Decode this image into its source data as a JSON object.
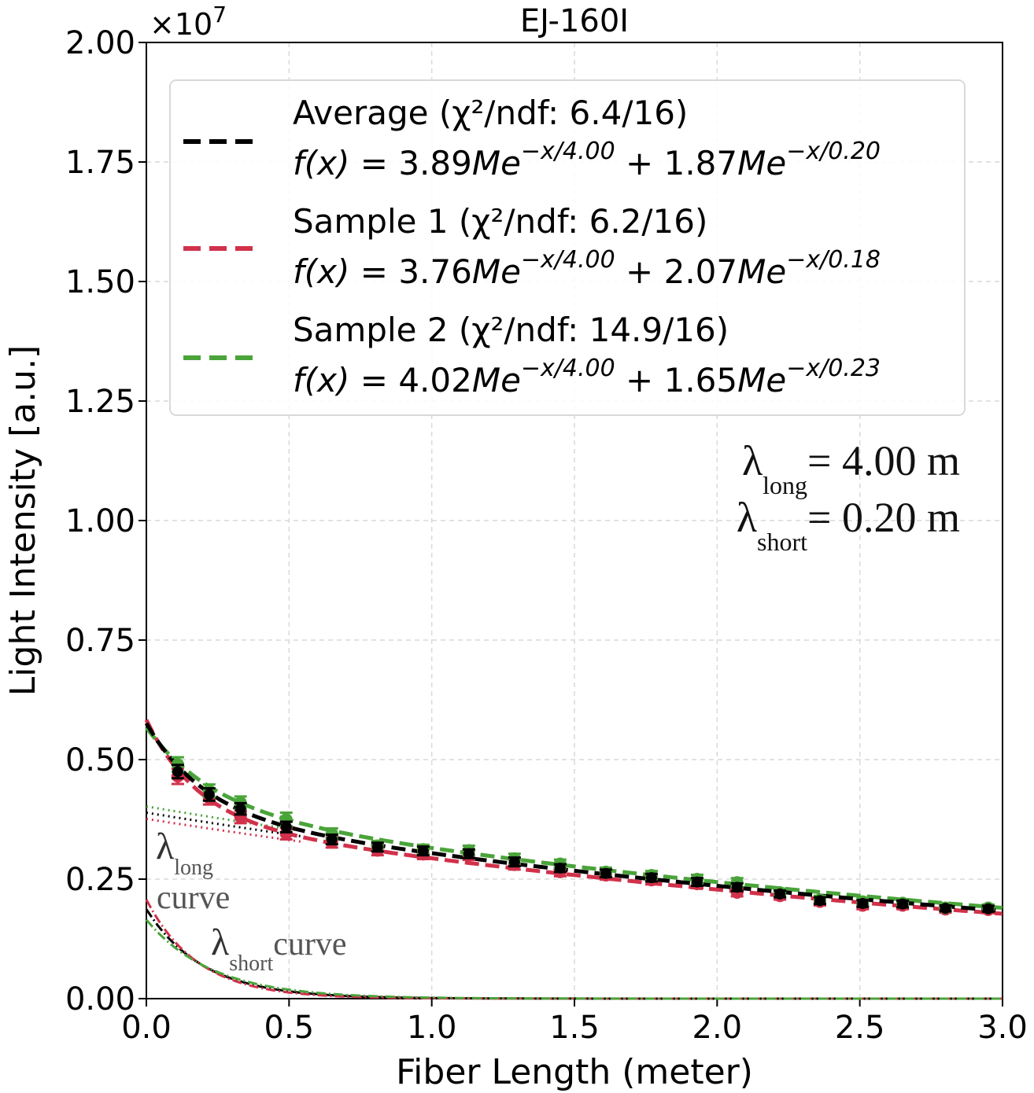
{
  "chart_data": {
    "type": "line",
    "title": "EJ-160I",
    "xlabel": "Fiber Length (meter)",
    "ylabel": "Light Intensity [a.u.]",
    "y_offset_label": "×10",
    "y_offset_exponent": "7",
    "xlim": [
      0.0,
      3.0
    ],
    "ylim": [
      0.0,
      2.0
    ],
    "y_scale": 10000000,
    "grid": true,
    "x_ticks": [
      0.0,
      0.5,
      1.0,
      1.5,
      2.0,
      2.5,
      3.0
    ],
    "x_tick_labels": [
      "0.0",
      "0.5",
      "1.0",
      "1.5",
      "2.0",
      "2.5",
      "3.0"
    ],
    "y_ticks": [
      0.0,
      0.25,
      0.5,
      0.75,
      1.0,
      1.25,
      1.5,
      1.75,
      2.0
    ],
    "y_tick_labels": [
      "0.00",
      "0.25",
      "0.50",
      "0.75",
      "1.00",
      "1.25",
      "1.50",
      "1.75",
      "2.00"
    ],
    "x": [
      0.11,
      0.22,
      0.33,
      0.49,
      0.65,
      0.81,
      0.97,
      1.13,
      1.29,
      1.45,
      1.61,
      1.77,
      1.93,
      2.07,
      2.22,
      2.36,
      2.51,
      2.65,
      2.8,
      2.95
    ],
    "series": [
      {
        "name": "Average",
        "color": "#000000",
        "long_atten": 4.0,
        "short_atten": 0.2,
        "A_long": 0.389,
        "A_short": 0.187,
        "values": [
          0.475,
          0.427,
          0.397,
          0.359,
          0.333,
          0.317,
          0.309,
          0.303,
          0.286,
          0.273,
          0.262,
          0.253,
          0.244,
          0.233,
          0.219,
          0.205,
          0.199,
          0.198,
          0.189,
          0.188
        ],
        "errors": [
          0.014,
          0.013,
          0.012,
          0.011,
          0.01,
          0.009,
          0.009,
          0.009,
          0.009,
          0.008,
          0.008,
          0.008,
          0.008,
          0.008,
          0.007,
          0.007,
          0.007,
          0.007,
          0.006,
          0.006
        ]
      },
      {
        "name": "Sample 1",
        "color": "#d1314a",
        "long_atten": 4.0,
        "short_atten": 0.18,
        "A_long": 0.376,
        "A_short": 0.207,
        "values": [
          0.465,
          0.42,
          0.38,
          0.345,
          0.327,
          0.31,
          0.302,
          0.3,
          0.28,
          0.265,
          0.258,
          0.248,
          0.24,
          0.222,
          0.215,
          0.203,
          0.195,
          0.195,
          0.187,
          0.186
        ],
        "errors": [
          0.016,
          0.014,
          0.013,
          0.012,
          0.011,
          0.01,
          0.01,
          0.01,
          0.01,
          0.009,
          0.009,
          0.009,
          0.009,
          0.008,
          0.008,
          0.008,
          0.008,
          0.008,
          0.007,
          0.007
        ]
      },
      {
        "name": "Sample 2",
        "color": "#4aa43a",
        "long_atten": 4.0,
        "short_atten": 0.23,
        "A_long": 0.402,
        "A_short": 0.165,
        "values": [
          0.49,
          0.435,
          0.41,
          0.375,
          0.345,
          0.32,
          0.312,
          0.31,
          0.293,
          0.282,
          0.265,
          0.258,
          0.25,
          0.243,
          0.222,
          0.207,
          0.203,
          0.2,
          0.19,
          0.19
        ],
        "errors": [
          0.015,
          0.013,
          0.013,
          0.014,
          0.011,
          0.01,
          0.01,
          0.01,
          0.01,
          0.009,
          0.009,
          0.009,
          0.009,
          0.009,
          0.008,
          0.008,
          0.008,
          0.008,
          0.007,
          0.007
        ]
      }
    ],
    "legend": {
      "position": "top",
      "entries": [
        {
          "label": "Average (χ²/ndf: 6.4/16)",
          "color": "#000000",
          "formula": {
            "prefix": "f(x) = ",
            "a1": "3.89",
            "unit1": "Me",
            "e1": "−x/4.00",
            "plus": " + ",
            "a2": "1.87",
            "unit2": "Me",
            "e2": "−x/0.20"
          }
        },
        {
          "label": "Sample 1 (χ²/ndf: 6.2/16)",
          "color": "#d1314a",
          "formula": {
            "prefix": "f(x) = ",
            "a1": "3.76",
            "unit1": "Me",
            "e1": "−x/4.00",
            "plus": " + ",
            "a2": "2.07",
            "unit2": "Me",
            "e2": "−x/0.18"
          }
        },
        {
          "label": "Sample 2 (χ²/ndf: 14.9/16)",
          "color": "#4aa43a",
          "formula": {
            "prefix": "f(x) = ",
            "a1": "4.02",
            "unit1": "Me",
            "e1": "−x/4.00",
            "plus": " + ",
            "a2": "1.65",
            "unit2": "Me",
            "e2": "−x/0.23"
          }
        }
      ]
    },
    "annotations": {
      "lambda_long": {
        "symbol": "λ",
        "sub": "long",
        "value": "= 4.00 m"
      },
      "lambda_short": {
        "symbol": "λ",
        "sub": "short",
        "value": "= 0.20 m"
      },
      "long_curve": {
        "symbol": "λ",
        "sub": "long",
        "word": "curve"
      },
      "short_curve": {
        "symbol": "λ",
        "sub": "short",
        "word": "curve"
      }
    }
  }
}
